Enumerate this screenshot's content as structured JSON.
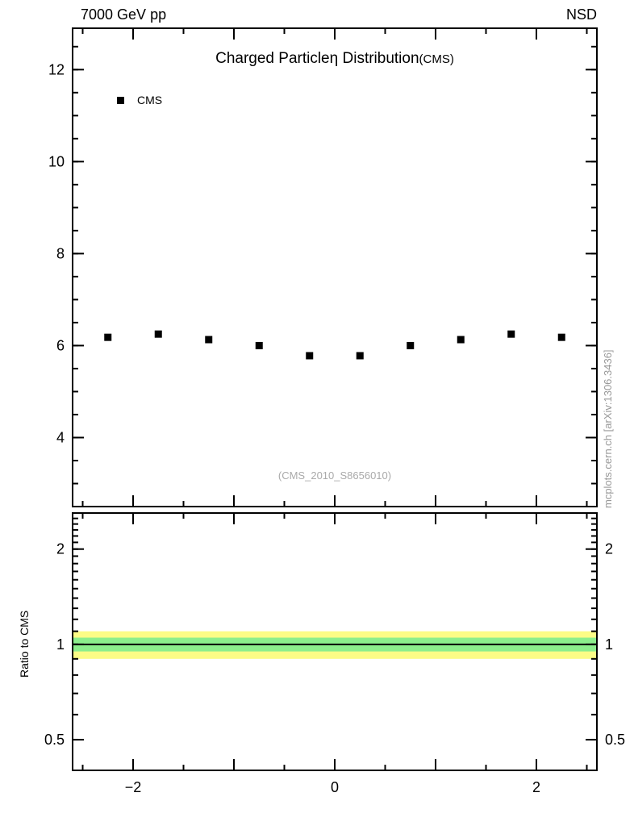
{
  "header": {
    "left": "7000 GeV pp",
    "right": "NSD"
  },
  "title": {
    "part1": "Charged Particle",
    "eta": "η",
    "part2": " Distribution",
    "suffix": "(CMS)"
  },
  "legend": {
    "items": [
      {
        "label": "CMS",
        "marker": "filled-square",
        "color": "#000000"
      }
    ]
  },
  "watermark": "(CMS_2010_S8656010)",
  "side_text": "mcplots.cern.ch [arXiv:1306.3436]",
  "chart_data": {
    "type": "scatter",
    "title": "Charged Particle η Distribution (CMS)",
    "xlabel": "",
    "ylabel": "",
    "xlim": [
      -2.6,
      2.6
    ],
    "xticks_major": [
      -2,
      -1,
      0,
      1,
      2
    ],
    "xtick_minor_step": 0.5,
    "xtick_labels": [
      {
        "v": -2,
        "label": "−2"
      },
      {
        "v": 0,
        "label": "0"
      },
      {
        "v": 2,
        "label": "2"
      }
    ],
    "main_panel": {
      "ylim": [
        2.5,
        12.9
      ],
      "ytick_minor_step": 0.5,
      "yticks": [
        {
          "v": 4,
          "label": "4"
        },
        {
          "v": 6,
          "label": "6"
        },
        {
          "v": 8,
          "label": "8"
        },
        {
          "v": 10,
          "label": "10"
        },
        {
          "v": 12,
          "label": "12"
        }
      ],
      "series": [
        {
          "name": "CMS",
          "marker": "square",
          "color": "#000000",
          "x": [
            -2.25,
            -1.75,
            -1.25,
            -0.75,
            -0.25,
            0.25,
            0.75,
            1.25,
            1.75,
            2.25
          ],
          "y": [
            6.18,
            6.25,
            6.13,
            6.0,
            5.78,
            5.78,
            6.0,
            6.13,
            6.25,
            6.18
          ]
        }
      ]
    },
    "ratio_panel": {
      "ylabel": "Ratio to CMS",
      "yscale": "log",
      "ylim": [
        0.4,
        2.6
      ],
      "yticks": [
        {
          "v": 0.5,
          "label": "0.5"
        },
        {
          "v": 1,
          "label": "1"
        },
        {
          "v": 2,
          "label": "2"
        }
      ],
      "bands": [
        {
          "name": "outer-uncertainty-band",
          "lo": 0.9,
          "hi": 1.1,
          "color": "#fcfc86"
        },
        {
          "name": "inner-uncertainty-band",
          "lo": 0.95,
          "hi": 1.05,
          "color": "#8cee8c"
        }
      ],
      "reference_line": {
        "y": 1.0,
        "color": "#000000"
      }
    }
  }
}
